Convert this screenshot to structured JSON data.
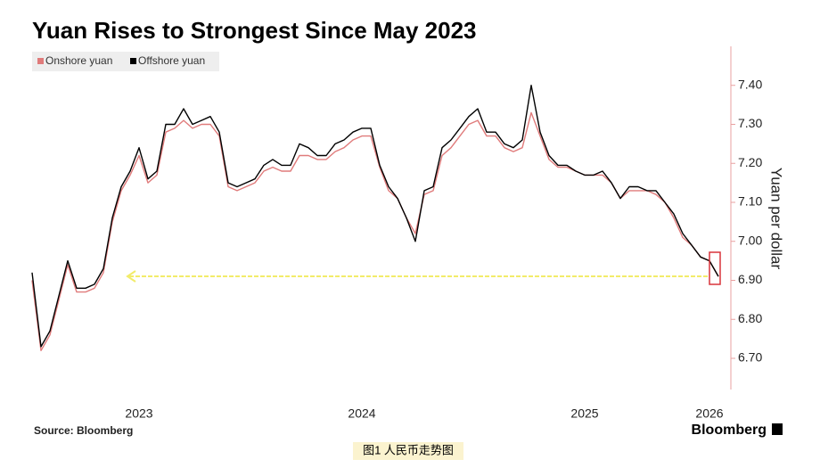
{
  "chart_data": {
    "type": "line",
    "title": "Yuan Rises to Strongest Since May 2023",
    "ylabel": "Yuan per dollar",
    "source": "Source: Bloomberg",
    "logo": "Bloomberg",
    "categories": [
      null,
      null,
      null,
      null,
      null,
      null,
      null,
      null,
      null,
      null,
      null,
      null,
      "2023",
      null,
      null,
      null,
      null,
      null,
      null,
      null,
      null,
      null,
      null,
      null,
      null,
      null,
      null,
      null,
      null,
      null,
      null,
      null,
      null,
      null,
      null,
      null,
      null,
      "2024",
      null,
      null,
      null,
      null,
      null,
      null,
      null,
      null,
      null,
      null,
      null,
      null,
      null,
      null,
      null,
      null,
      null,
      null,
      null,
      null,
      null,
      null,
      null,
      null,
      "2025",
      null,
      null,
      null,
      null,
      null,
      null,
      null,
      null,
      null,
      null,
      null,
      null,
      null,
      "2026",
      null
    ],
    "series": [
      {
        "name": "Onshore yuan",
        "color": "#e07b7b",
        "values": [
          6.9,
          6.72,
          6.76,
          6.85,
          6.94,
          6.87,
          6.87,
          6.88,
          6.92,
          7.05,
          7.13,
          7.17,
          7.22,
          7.15,
          7.17,
          7.28,
          7.29,
          7.31,
          7.29,
          7.3,
          7.3,
          7.27,
          7.14,
          7.13,
          7.14,
          7.15,
          7.18,
          7.19,
          7.18,
          7.18,
          7.22,
          7.22,
          7.21,
          7.21,
          7.23,
          7.24,
          7.26,
          7.27,
          7.27,
          7.19,
          7.13,
          7.11,
          7.06,
          7.02,
          7.12,
          7.13,
          7.22,
          7.24,
          7.27,
          7.3,
          7.31,
          7.27,
          7.27,
          7.24,
          7.23,
          7.24,
          7.33,
          7.27,
          7.21,
          7.19,
          7.19,
          7.18,
          7.17,
          7.17,
          7.17,
          7.15,
          7.11,
          7.13,
          7.13,
          7.13,
          7.12,
          7.1,
          7.06,
          7.01,
          6.99,
          6.96,
          6.95,
          6.91
        ]
      },
      {
        "name": "Offshore yuan",
        "color": "#000000",
        "values": [
          6.92,
          6.73,
          6.77,
          6.86,
          6.95,
          6.88,
          6.88,
          6.89,
          6.93,
          7.06,
          7.14,
          7.18,
          7.24,
          7.16,
          7.18,
          7.3,
          7.3,
          7.34,
          7.3,
          7.31,
          7.32,
          7.28,
          7.15,
          7.14,
          7.15,
          7.16,
          7.195,
          7.21,
          7.195,
          7.195,
          7.25,
          7.24,
          7.22,
          7.22,
          7.25,
          7.26,
          7.28,
          7.29,
          7.29,
          7.195,
          7.14,
          7.11,
          7.06,
          7.0,
          7.13,
          7.14,
          7.24,
          7.26,
          7.29,
          7.32,
          7.34,
          7.28,
          7.28,
          7.25,
          7.24,
          7.26,
          7.4,
          7.28,
          7.22,
          7.195,
          7.195,
          7.18,
          7.17,
          7.17,
          7.18,
          7.15,
          7.11,
          7.14,
          7.14,
          7.13,
          7.13,
          7.1,
          7.07,
          7.02,
          6.99,
          6.96,
          6.95,
          6.91
        ]
      }
    ],
    "ylim": [
      6.62,
      7.5
    ],
    "yticks": [
      {
        "value": 6.7,
        "label": "6.70"
      },
      {
        "value": 6.8,
        "label": "6.80"
      },
      {
        "value": 6.9,
        "label": "6.90"
      },
      {
        "value": 7.0,
        "label": "7.00"
      },
      {
        "value": 7.1,
        "label": "7.10"
      },
      {
        "value": 7.2,
        "label": "7.20"
      },
      {
        "value": 7.3,
        "label": "7.30"
      },
      {
        "value": 7.4,
        "label": "7.40"
      }
    ],
    "yaxis_side": "right",
    "legend": "top-left"
  },
  "caption": "图1 人民币走势图"
}
